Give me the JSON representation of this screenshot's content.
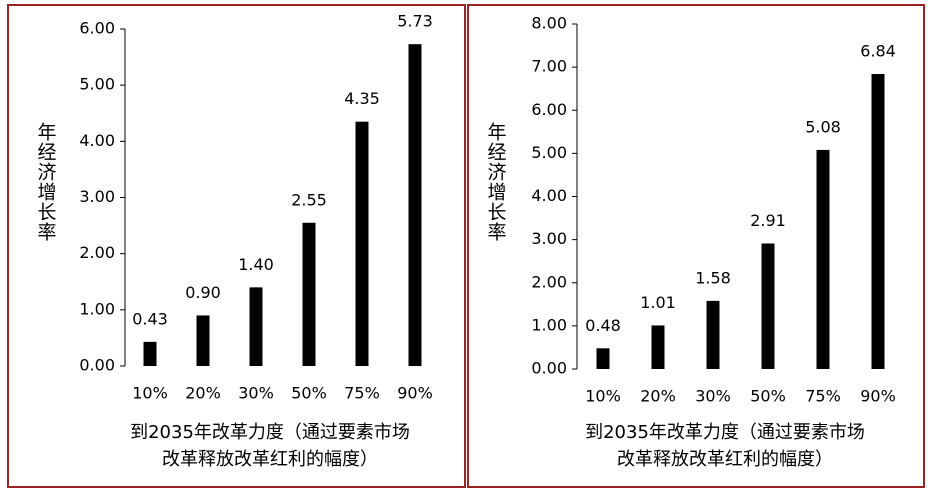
{
  "chart_data": [
    {
      "type": "bar",
      "y_label": "年经济增长率",
      "x_label": [
        "到2035年改革力度（通过要素市场",
        "改革释放改革红利的幅度）"
      ],
      "categories": [
        "10%",
        "20%",
        "30%",
        "50%",
        "75%",
        "90%"
      ],
      "values": [
        0.43,
        0.9,
        1.4,
        2.55,
        4.35,
        5.73
      ],
      "value_labels": [
        "0.43",
        "0.90",
        "1.40",
        "2.55",
        "4.35",
        "5.73"
      ],
      "color": "#000000",
      "ylim": [
        0,
        6
      ],
      "yticks": [
        {
          "value": 0,
          "label": "0.00"
        },
        {
          "value": 1,
          "label": "1.00"
        },
        {
          "value": 2,
          "label": "2.00"
        },
        {
          "value": 3,
          "label": "3.00"
        },
        {
          "value": 4,
          "label": "4.00"
        },
        {
          "value": 5,
          "label": "5.00"
        },
        {
          "value": 6,
          "label": "6.00"
        }
      ],
      "grid": false
    },
    {
      "type": "bar",
      "y_label": "年经济增长率",
      "x_label": [
        "到2035年改革力度（通过要素市场",
        "改革释放改革红利的幅度）"
      ],
      "categories": [
        "10%",
        "20%",
        "30%",
        "50%",
        "75%",
        "90%"
      ],
      "values": [
        0.48,
        1.01,
        1.58,
        2.91,
        5.08,
        6.84
      ],
      "value_labels": [
        "0.48",
        "1.01",
        "1.58",
        "2.91",
        "5.08",
        "6.84"
      ],
      "color": "#000000",
      "ylim": [
        0,
        8
      ],
      "yticks": [
        {
          "value": 0,
          "label": "0.00"
        },
        {
          "value": 1,
          "label": "1.00"
        },
        {
          "value": 2,
          "label": "2.00"
        },
        {
          "value": 3,
          "label": "3.00"
        },
        {
          "value": 4,
          "label": "4.00"
        },
        {
          "value": 5,
          "label": "5.00"
        },
        {
          "value": 6,
          "label": "6.00"
        },
        {
          "value": 7,
          "label": "7.00"
        },
        {
          "value": 8,
          "label": "8.00"
        }
      ],
      "grid": false
    }
  ]
}
